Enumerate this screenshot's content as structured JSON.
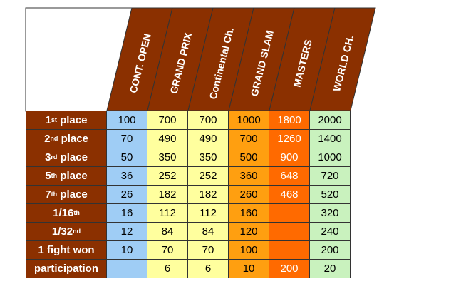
{
  "columns": [
    "CONT. OPEN",
    "GRAND PRIX",
    "Continental Ch.",
    "GRAND SLAM",
    "MASTERS",
    "WORLD CH."
  ],
  "rows": [
    {
      "label": "1",
      "sup": "st",
      "suffix": " place",
      "values": [
        "100",
        "700",
        "700",
        "1000",
        "1800",
        "2000"
      ]
    },
    {
      "label": "2",
      "sup": "nd",
      "suffix": " place",
      "values": [
        "70",
        "490",
        "490",
        "700",
        "1260",
        "1400"
      ]
    },
    {
      "label": "3",
      "sup": "rd",
      "suffix": " place",
      "values": [
        "50",
        "350",
        "350",
        "500",
        "900",
        "1000"
      ]
    },
    {
      "label": "5",
      "sup": "th",
      "suffix": " place",
      "values": [
        "36",
        "252",
        "252",
        "360",
        "648",
        "720"
      ]
    },
    {
      "label": "7",
      "sup": "th",
      "suffix": " place",
      "values": [
        "26",
        "182",
        "182",
        "260",
        "468",
        "520"
      ]
    },
    {
      "label": "1/16",
      "sup": "th",
      "suffix": "",
      "values": [
        "16",
        "112",
        "112",
        "160",
        "",
        "320"
      ]
    },
    {
      "label": "1/32",
      "sup": "nd",
      "suffix": "",
      "values": [
        "12",
        "84",
        "84",
        "120",
        "",
        "240"
      ]
    },
    {
      "label": "1 fight won",
      "sup": "",
      "suffix": "",
      "values": [
        "10",
        "70",
        "70",
        "100",
        "",
        "200"
      ]
    },
    {
      "label": "participation",
      "sup": "",
      "suffix": "",
      "values": [
        "",
        "6",
        "6",
        "10",
        "200",
        "20"
      ]
    }
  ],
  "colors": {
    "header_brown": "#8b3000",
    "cont_open": "#9fcdf5",
    "grand_prix": "#ffff9e",
    "continental": "#ffff9e",
    "grand_slam": "#ff9f10",
    "masters": "#ff6a00",
    "world": "#c9f2be"
  }
}
